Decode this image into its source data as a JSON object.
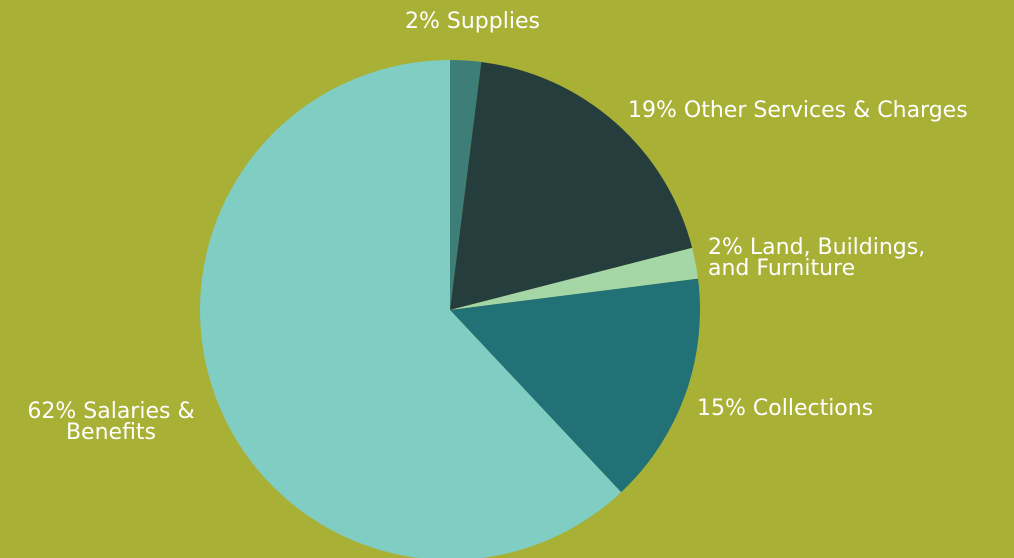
{
  "chart_data": {
    "type": "pie",
    "title": "",
    "slices": [
      {
        "label": "2% Supplies",
        "value": 2,
        "color": "#3e7e78"
      },
      {
        "label": "19% Other Services & Charges",
        "value": 19,
        "color": "#263d3d"
      },
      {
        "label": "2% Land, Buildings,\nand Furniture",
        "value": 2,
        "color": "#a5d6a6"
      },
      {
        "label": "15% Collections",
        "value": 15,
        "color": "#217176"
      },
      {
        "label": "62% Salaries &\nBenefits",
        "value": 62,
        "color": "#7fcdc3"
      }
    ],
    "background": "#a8b036",
    "label_color": "#ffffff"
  }
}
